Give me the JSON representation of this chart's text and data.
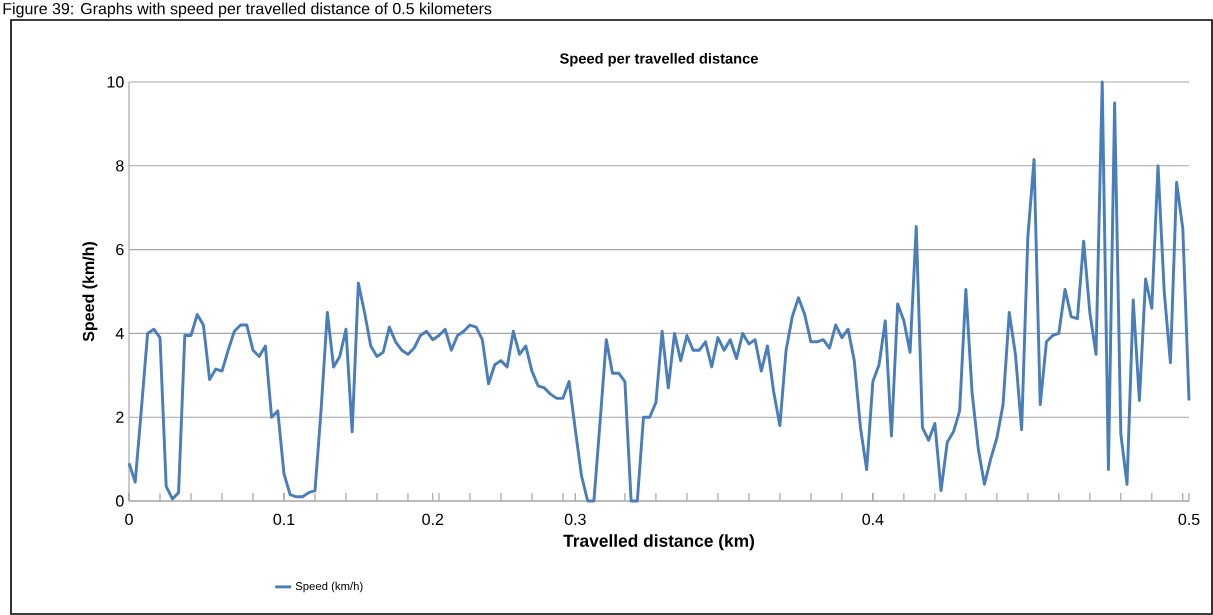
{
  "chart_data": {
    "type": "line",
    "title": "Speed  per travelled distance",
    "xlabel": "Travelled distance (km)",
    "ylabel": "Speed (km/h)",
    "annotations": [
      "Figure 39: Graphs with speed per travelled distance of 0.5 kilometers"
    ],
    "categories": [
      "0",
      null,
      null,
      null,
      null,
      null,
      null,
      null,
      null,
      null,
      null,
      null,
      null,
      null,
      null,
      null,
      null,
      null,
      null,
      null,
      null,
      null,
      null,
      null,
      null,
      "0.1",
      null,
      null,
      null,
      null,
      null,
      null,
      null,
      null,
      null,
      null,
      null,
      null,
      null,
      null,
      null,
      null,
      null,
      null,
      null,
      null,
      null,
      null,
      null,
      "0.2",
      null,
      null,
      null,
      null,
      null,
      null,
      null,
      null,
      null,
      null,
      null,
      null,
      null,
      null,
      null,
      null,
      null,
      null,
      null,
      null,
      null,
      null,
      "0.3",
      null,
      null,
      null,
      null,
      null,
      null,
      null,
      null,
      null,
      null,
      null,
      null,
      null,
      null,
      null,
      null,
      null,
      null,
      null,
      null,
      null,
      null,
      null,
      null,
      null,
      null,
      null,
      null,
      null,
      null,
      null,
      null,
      null,
      null,
      null,
      null,
      null,
      null,
      null,
      null,
      null,
      null,
      null,
      null,
      null,
      null,
      null,
      "0.4",
      null,
      null,
      null,
      null,
      null,
      null,
      null,
      null,
      null,
      null,
      null,
      null,
      null,
      null,
      null,
      null,
      null,
      null,
      null,
      null,
      null,
      null,
      null,
      null,
      null,
      null,
      null,
      null,
      null,
      null,
      null,
      null,
      null,
      null,
      null,
      null,
      null,
      null,
      null,
      null,
      null,
      null,
      null,
      null,
      null,
      null,
      null,
      null,
      null,
      null,
      "0.5"
    ],
    "series": [
      {
        "name": "Speed (km/h)",
        "color": "#4a7ebb",
        "values": [
          0.9,
          0.45,
          2.2,
          4.0,
          4.1,
          3.9,
          0.35,
          0.05,
          0.2,
          3.95,
          3.95,
          4.45,
          4.2,
          2.9,
          3.15,
          3.1,
          3.6,
          4.05,
          4.2,
          4.2,
          3.6,
          3.45,
          3.7,
          2.0,
          2.15,
          0.65,
          0.15,
          0.1,
          0.1,
          0.2,
          0.25,
          2.2,
          4.5,
          3.2,
          3.45,
          4.1,
          1.65,
          5.2,
          4.5,
          3.7,
          3.45,
          3.55,
          4.15,
          3.8,
          3.6,
          3.5,
          3.65,
          3.95,
          4.05,
          3.85,
          3.95,
          4.1,
          3.6,
          3.95,
          4.05,
          4.2,
          4.15,
          3.85,
          2.8,
          3.25,
          3.35,
          3.2,
          4.05,
          3.5,
          3.7,
          3.1,
          2.75,
          2.7,
          2.55,
          2.45,
          2.45,
          2.85,
          1.7,
          0.6,
          0.0,
          0.0,
          1.9,
          3.85,
          3.05,
          3.05,
          2.85,
          0.0,
          0.0,
          2.0,
          2.0,
          2.35,
          4.05,
          2.7,
          4.0,
          3.35,
          3.95,
          3.6,
          3.6,
          3.8,
          3.2,
          3.9,
          3.6,
          3.85,
          3.4,
          4.0,
          3.75,
          3.85,
          3.1,
          3.7,
          2.6,
          1.8,
          3.6,
          4.4,
          4.85,
          4.45,
          3.8,
          3.8,
          3.85,
          3.65,
          4.2,
          3.9,
          4.1,
          3.35,
          1.75,
          0.75,
          2.85,
          3.25,
          4.3,
          1.55,
          4.7,
          4.3,
          3.55,
          6.55,
          1.75,
          1.45,
          1.85,
          0.25,
          1.4,
          1.65,
          2.15,
          5.05,
          2.6,
          1.25,
          0.4,
          1.0,
          1.5,
          2.3,
          4.5,
          3.5,
          1.7,
          6.3,
          8.15,
          2.3,
          3.8,
          3.95,
          4.0,
          5.05,
          4.4,
          4.35,
          6.2,
          4.5,
          3.5,
          10.0,
          0.75,
          9.5,
          1.6,
          0.4,
          4.8,
          2.4,
          5.3,
          4.6,
          8.0,
          5.0,
          3.3,
          7.6,
          6.5,
          2.4
        ]
      }
    ],
    "ylim": [
      0,
      10
    ],
    "yticks": [
      0,
      2,
      4,
      6,
      8,
      10
    ],
    "grid": "y",
    "legend": "bottom",
    "marker": "none",
    "line_style": "solid"
  }
}
